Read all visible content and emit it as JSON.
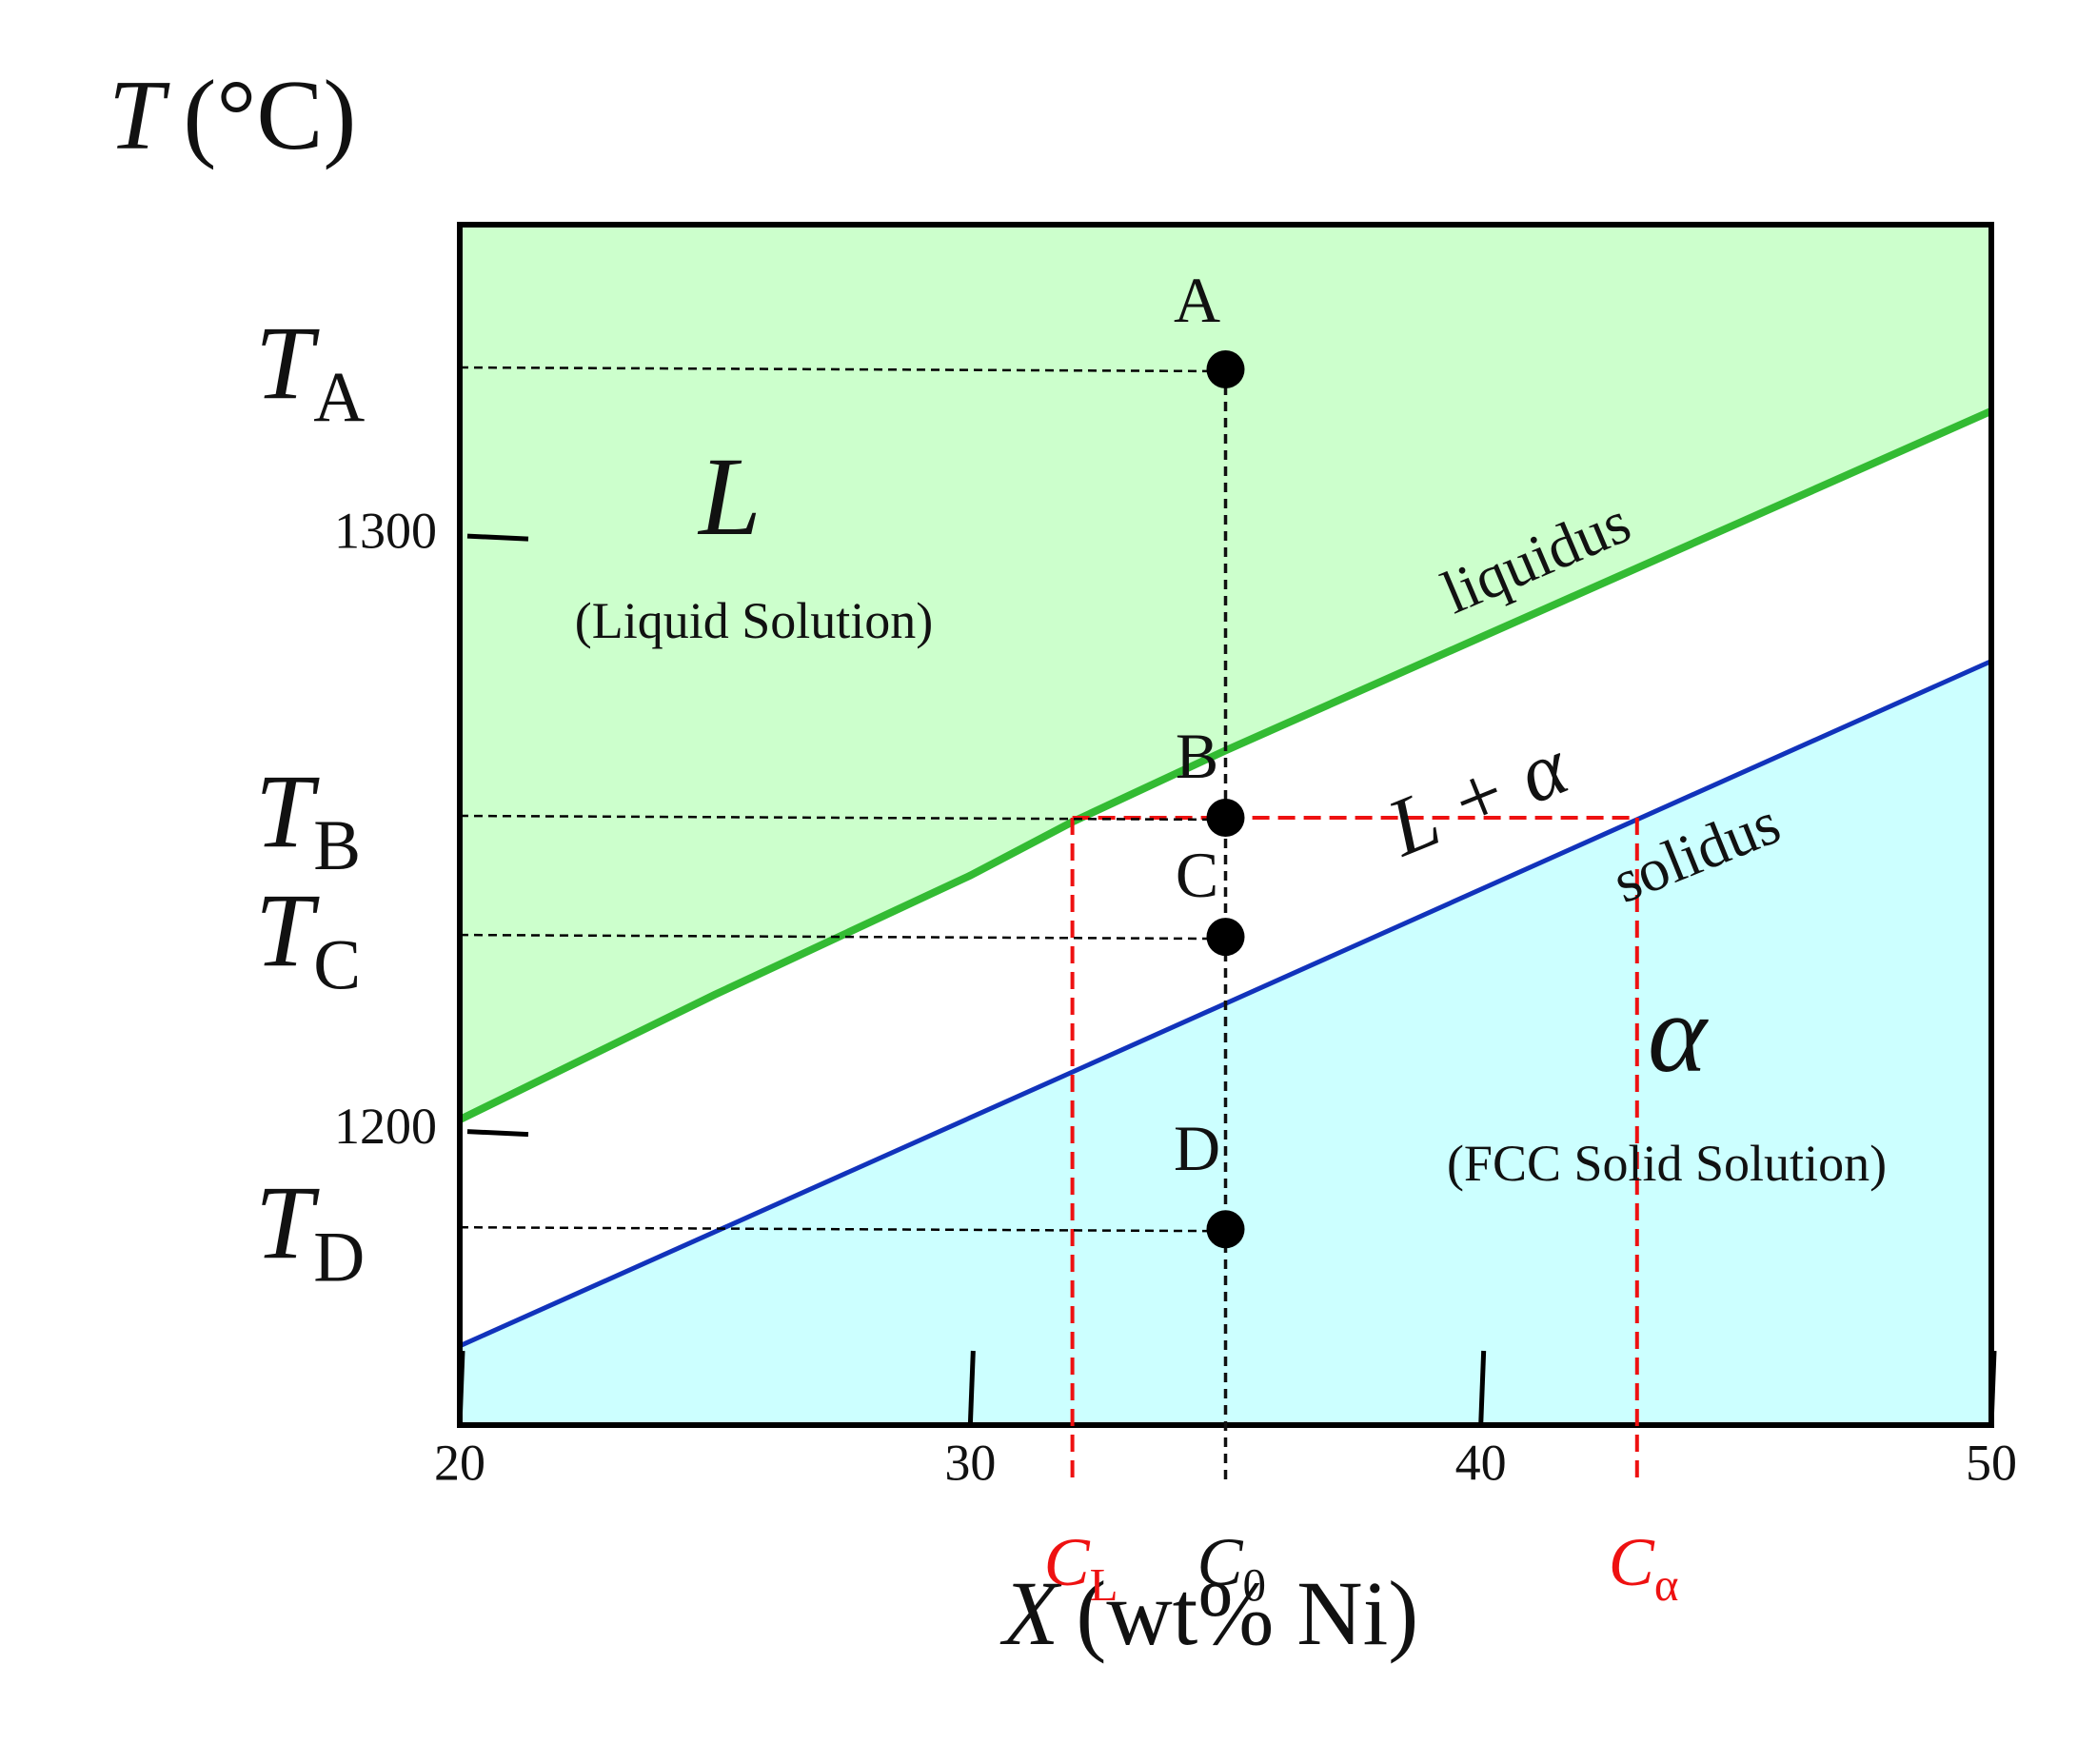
{
  "chart_data": {
    "type": "phase",
    "x_label": {
      "symbol": "X",
      "text": "(wt% Ni)"
    },
    "y_label": {
      "symbol": "T",
      "text": "(°C)"
    },
    "xlim": [
      20,
      50
    ],
    "ylim": [
      1150.7,
      1352.3
    ],
    "xticks": [
      20,
      30,
      40,
      50
    ],
    "yticks": [
      1200,
      1300
    ],
    "series": [
      {
        "name": "liquidus",
        "color": "#33bb33",
        "fill": "#ccffcc",
        "x": [
          20,
          25,
          30,
          32,
          35,
          40,
          45,
          50
        ],
        "values": [
          1202,
          1223,
          1243,
          1252,
          1264,
          1283,
          1302,
          1321
        ]
      },
      {
        "name": "solidus",
        "color": "#1133bb",
        "fill": "#ccffff",
        "x": [
          20,
          50
        ],
        "values": [
          1164,
          1279
        ]
      }
    ],
    "regions": {
      "liquid": {
        "symbol": "L",
        "description": "(Liquid Solution)"
      },
      "two_phase": "L + α",
      "solid": {
        "symbol": "α",
        "description": "(FCC Solid Solution)"
      }
    },
    "points": [
      {
        "label": "A",
        "x": 35,
        "y": 1328,
        "temp_symbol": "T",
        "temp_subscript": "A"
      },
      {
        "label": "B",
        "x": 35,
        "y": 1252.7,
        "temp_symbol": "T",
        "temp_subscript": "B"
      },
      {
        "label": "C",
        "x": 35,
        "y": 1232.7,
        "temp_symbol": "T",
        "temp_subscript": "C"
      },
      {
        "label": "D",
        "x": 35,
        "y": 1183.6,
        "temp_symbol": "T",
        "temp_subscript": "D"
      }
    ],
    "compositions": [
      {
        "symbol": "C",
        "subscript": "L",
        "x": 32,
        "color": "#ee1111"
      },
      {
        "symbol": "C",
        "subscript": "0",
        "x": 35,
        "color": "#111111"
      },
      {
        "symbol": "C",
        "subscript": "α",
        "x": 43.06,
        "color": "#ee1111"
      }
    ]
  }
}
